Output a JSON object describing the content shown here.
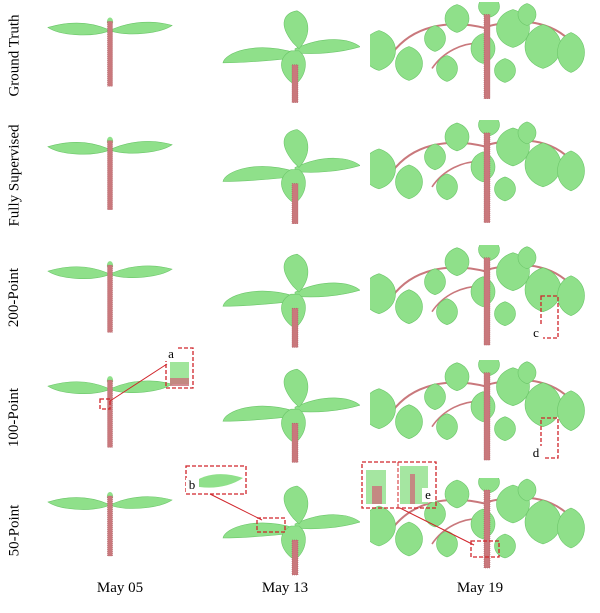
{
  "figure": {
    "row_labels": [
      "Ground Truth",
      "Fully Supervised",
      "200-Point",
      "100-Point",
      "50-Point"
    ],
    "column_labels": [
      "May 05",
      "May 13",
      "May 19"
    ],
    "callouts": [
      "a",
      "b",
      "c",
      "d",
      "e"
    ]
  },
  "colors": {
    "leaf": "#8fe08a",
    "leaf_dark": "#6cc66a",
    "stem": "#c9787c",
    "stem_dark": "#a8545b",
    "callout": "#d0242a"
  }
}
